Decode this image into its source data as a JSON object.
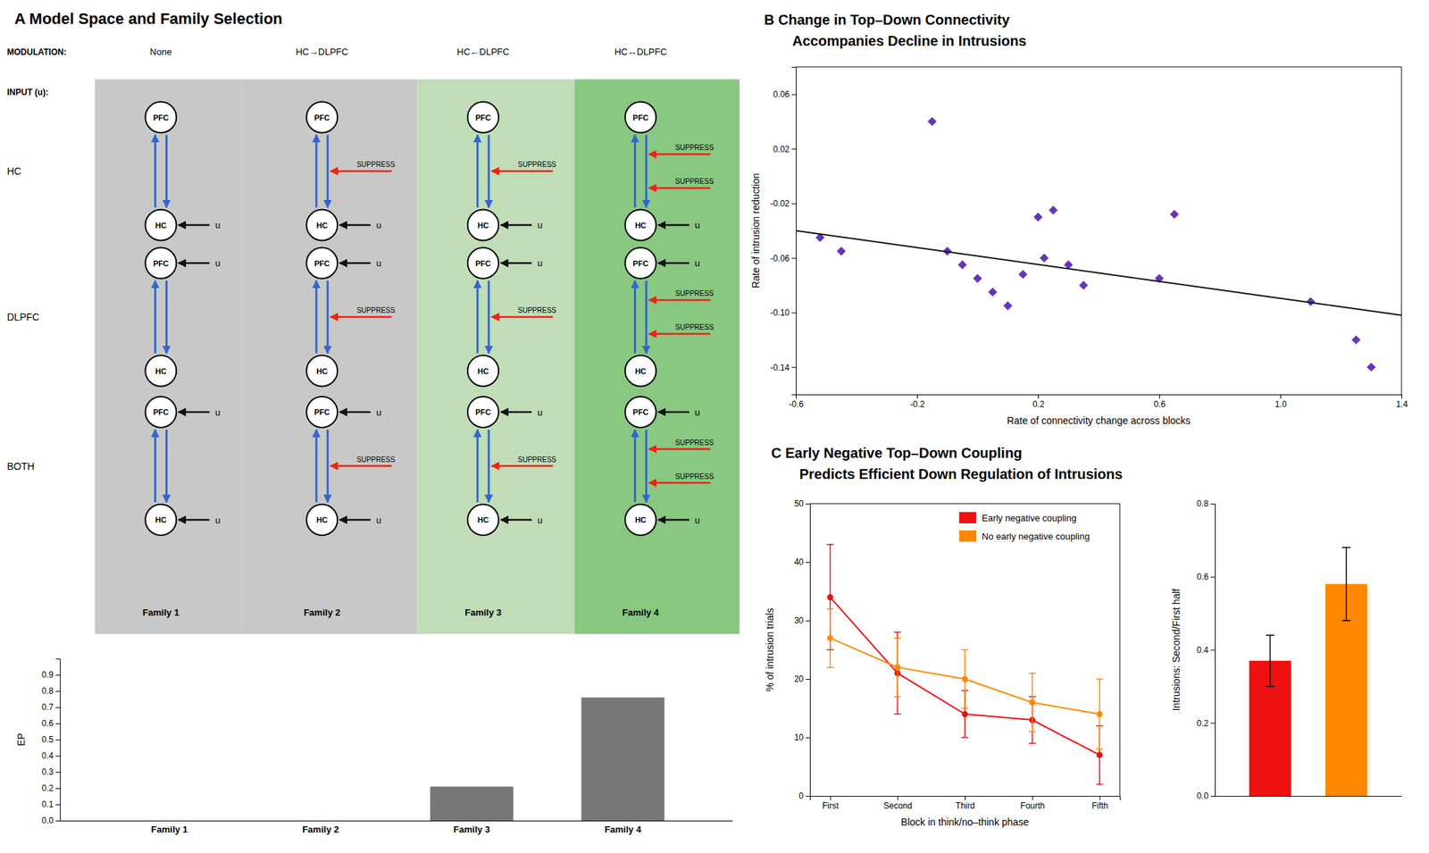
{
  "chart_data": [
    {
      "type": "diagram",
      "title": "A  Model Space and Family Selection",
      "annotations": [
        "MODULATION:",
        "INPUT (u):"
      ],
      "categories": [
        "None",
        "HC→DLPFC",
        "HC←DLPFC",
        "HC↔DLPFC"
      ],
      "row_labels": [
        "HC",
        "DLPFC",
        "BOTH"
      ],
      "family_labels": [
        "Family 1",
        "Family 2",
        "Family 3",
        "Family 4"
      ],
      "node_labels": [
        "PFC",
        "HC"
      ],
      "input_label": "u",
      "suppress_label": "SUPPRESS",
      "colors": [
        "#c8c8c8",
        "#c8c8c8",
        "#c0ddb8",
        "#88c880"
      ],
      "connection_color": "#3366cc",
      "suppress_color": "#ee2211",
      "input_color": "#111111"
    },
    {
      "type": "bar",
      "categories": [
        "Family 1",
        "Family 2",
        "Family 3",
        "Family 4"
      ],
      "values": [
        0.0,
        0.0,
        0.21,
        0.76
      ],
      "color": "#777777",
      "ylabel": "EP",
      "ylim": [
        0,
        1.0
      ],
      "yticks": [
        {
          "value": 0,
          "label": "0.0"
        },
        0.1,
        0.2,
        0.3,
        0.4,
        0.5,
        0.6,
        0.7,
        0.8,
        0.9
      ]
    },
    {
      "type": "scatter",
      "title": "B  Change in Top–Down Connectivity",
      "subtitle": "Accompanies Decline in Intrusions",
      "series": [
        {
          "type": "scatter",
          "color": "#6633bb",
          "marker": "diamond",
          "x": [
            -0.52,
            -0.45,
            -0.15,
            -0.1,
            -0.05,
            0.0,
            0.05,
            0.1,
            0.15,
            0.2,
            0.22,
            0.25,
            0.3,
            0.35,
            0.6,
            0.65,
            1.1,
            1.25,
            1.3
          ],
          "values": [
            -0.045,
            -0.055,
            0.04,
            -0.055,
            -0.065,
            -0.075,
            -0.085,
            -0.095,
            -0.072,
            -0.03,
            -0.06,
            -0.025,
            -0.065,
            -0.08,
            -0.075,
            -0.028,
            -0.092,
            -0.12,
            -0.14
          ]
        },
        {
          "type": "line",
          "color": "#111111",
          "x": [
            -0.6,
            1.4
          ],
          "values": [
            -0.04,
            -0.102
          ]
        }
      ],
      "xlabel": "Rate of connectivity change across blocks",
      "ylabel": "Rate of intrusion reduction",
      "xlim": [
        -0.6,
        1.4
      ],
      "ylim": [
        -0.16,
        0.08
      ],
      "xticks": [
        -0.6,
        -0.2,
        0.2,
        0.6,
        {
          "value": 1.0,
          "label": "1.0"
        },
        1.4
      ],
      "yticks": [
        -0.14,
        {
          "value": -0.1,
          "label": "-0.10"
        },
        -0.06,
        -0.02,
        0.02,
        0.06
      ]
    },
    {
      "type": "line",
      "title": "C  Early Negative Top–Down Coupling",
      "subtitle": "Predicts Efficient Down Regulation of Intrusions",
      "x": [
        1,
        2,
        3,
        4,
        5
      ],
      "series": [
        {
          "name": "Early negative coupling",
          "color": "#ee1111",
          "marker": "circle",
          "values": [
            34,
            21,
            14,
            13,
            7
          ],
          "error": [
            9,
            7,
            4,
            4,
            5
          ]
        },
        {
          "name": "No early negative coupling",
          "color": "#ff8800",
          "marker": "circle",
          "values": [
            27,
            22,
            20,
            16,
            14
          ],
          "error": [
            5,
            5,
            5,
            5,
            6
          ]
        }
      ],
      "xlabel": "Block in think/no–think phase",
      "ylabel": "% of intrusion trials",
      "xlim": [
        0.7,
        5.3
      ],
      "ylim": [
        0,
        50
      ],
      "xticks": [
        {
          "value": 1,
          "label": "First"
        },
        {
          "value": 2,
          "label": "Second"
        },
        {
          "value": 3,
          "label": "Third"
        },
        {
          "value": 4,
          "label": "Fourth"
        },
        {
          "value": 5,
          "label": "Fifth"
        }
      ],
      "yticks": [
        0,
        10,
        20,
        30,
        40,
        50
      ],
      "legend": "upper right"
    },
    {
      "type": "bar",
      "categories": [
        null,
        null
      ],
      "values": [
        0.37,
        0.58
      ],
      "error": [
        0.07,
        0.1
      ],
      "colors": [
        "#ee1111",
        "#ff8800"
      ],
      "ylabel": "Intrusions: Second/First half",
      "ylim": [
        0,
        0.8
      ],
      "yticks": [
        {
          "value": 0,
          "label": "0.0"
        },
        0.2,
        0.4,
        0.6,
        0.8
      ],
      "tick_labels": "y"
    }
  ]
}
